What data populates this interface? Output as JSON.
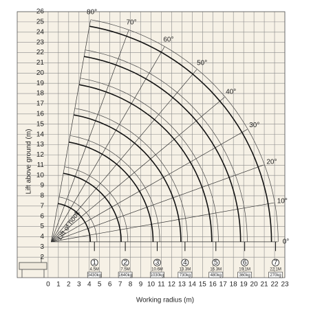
{
  "chart_data": {
    "type": "working-range",
    "x_label": "Working radius  (m)",
    "y_label": "Lift above ground  (m)",
    "annotation": "Lift of hook",
    "xlim": [
      -3,
      23
    ],
    "ylim": [
      0,
      26
    ],
    "xticks": [
      0,
      1,
      2,
      3,
      4,
      5,
      6,
      7,
      8,
      9,
      10,
      11,
      12,
      13,
      14,
      15,
      16,
      17,
      18,
      19,
      20,
      21,
      22,
      23
    ],
    "yticks": [
      2,
      3,
      4,
      5,
      6,
      7,
      8,
      9,
      10,
      11,
      12,
      13,
      14,
      15,
      16,
      17,
      18,
      19,
      20,
      21,
      22,
      23,
      24,
      25,
      26
    ],
    "angles": [
      {
        "value": 80,
        "label": "80°"
      },
      {
        "value": 70,
        "label": "70°"
      },
      {
        "value": 60,
        "label": "60°"
      },
      {
        "value": 50,
        "label": "50°"
      },
      {
        "value": 40,
        "label": "40°"
      },
      {
        "value": 30,
        "label": "30°"
      },
      {
        "value": 20,
        "label": "20°"
      },
      {
        "value": 10,
        "label": "10°"
      },
      {
        "value": 0,
        "label": "0°"
      }
    ],
    "booms": [
      {
        "marker": "1",
        "length": "4.5M",
        "load": "3430kg",
        "radius": 4.5
      },
      {
        "marker": "2",
        "length": "7.5M",
        "load": "1640kg",
        "radius": 7.5
      },
      {
        "marker": "3",
        "length": "10.6M",
        "load": "1030kg",
        "radius": 10.6
      },
      {
        "marker": "4",
        "length": "13.3M",
        "load": "730kg",
        "radius": 13.3
      },
      {
        "marker": "5",
        "length": "16.3M",
        "load": "480kg",
        "radius": 16.3
      },
      {
        "marker": "6",
        "length": "19.1M",
        "load": "360kg",
        "radius": 19.1
      },
      {
        "marker": "7",
        "length": "22.1M",
        "load": "270kg",
        "radius": 22.1
      }
    ]
  }
}
